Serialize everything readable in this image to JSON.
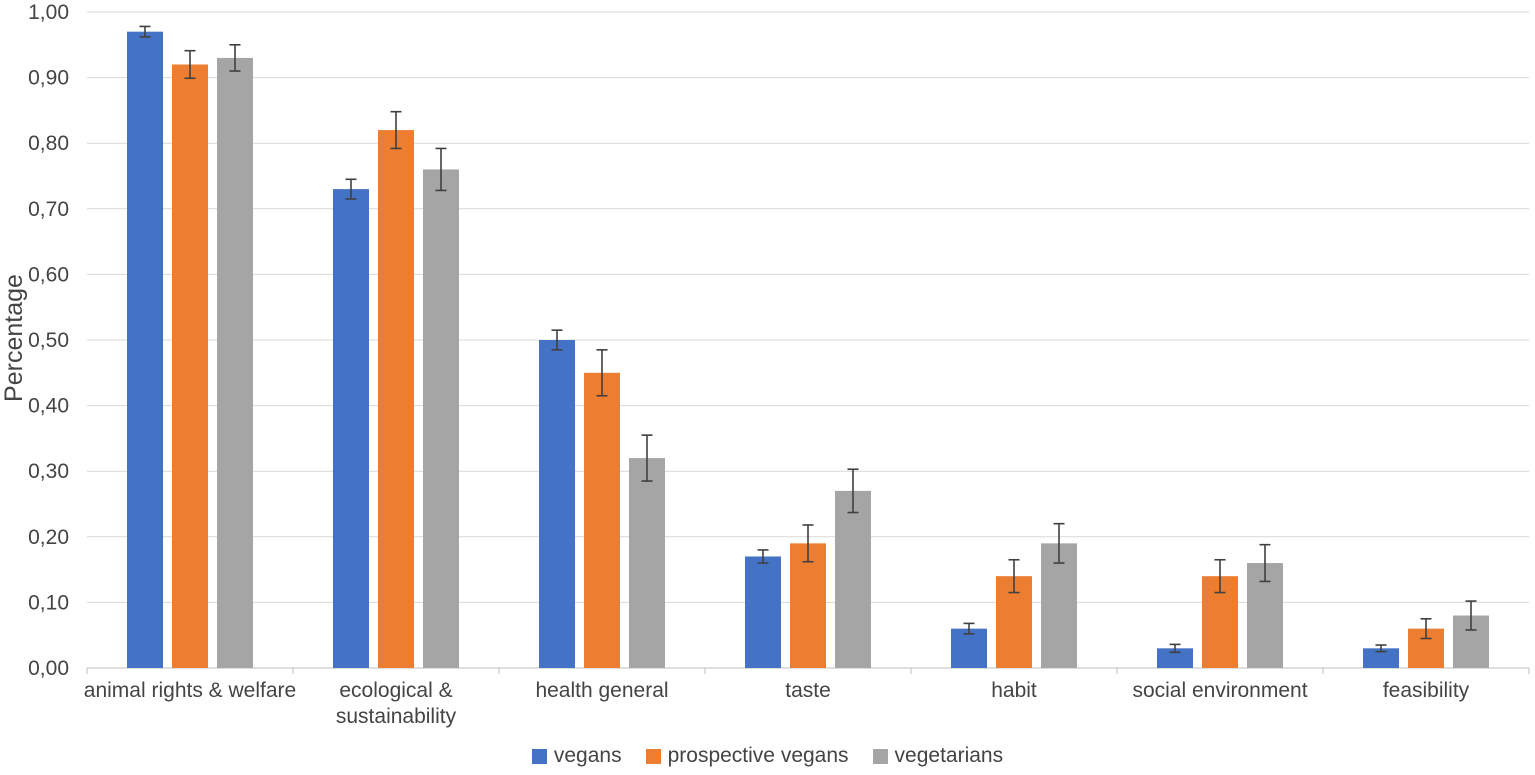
{
  "chart_data": {
    "type": "bar",
    "title": "",
    "ylabel": "Percentage",
    "xlabel": "",
    "ylim": [
      0,
      1.0
    ],
    "ytick_step": 0.1,
    "ytick_labels": [
      "0,00",
      "0,10",
      "0,20",
      "0,30",
      "0,40",
      "0,50",
      "0,60",
      "0,70",
      "0,80",
      "0,90",
      "1,00"
    ],
    "decimal_separator": ",",
    "grid": true,
    "error_bars": true,
    "legend_position": "bottom",
    "categories": [
      "animal rights & welfare",
      "ecological & sustainability",
      "health general",
      "taste",
      "habit",
      "social environment",
      "feasibility"
    ],
    "category_lines": [
      [
        "animal rights & welfare"
      ],
      [
        "ecological &",
        "sustainability"
      ],
      [
        "health general"
      ],
      [
        "taste"
      ],
      [
        "habit"
      ],
      [
        "social environment"
      ],
      [
        "feasibility"
      ]
    ],
    "series": [
      {
        "name": "vegans",
        "color": "#4472C4",
        "values": [
          0.97,
          0.73,
          0.5,
          0.17,
          0.06,
          0.03,
          0.03
        ],
        "errors": [
          0.008,
          0.015,
          0.015,
          0.01,
          0.008,
          0.006,
          0.005
        ]
      },
      {
        "name": "prospective vegans",
        "color": "#ED7D31",
        "values": [
          0.92,
          0.82,
          0.45,
          0.19,
          0.14,
          0.14,
          0.06
        ],
        "errors": [
          0.021,
          0.028,
          0.035,
          0.028,
          0.025,
          0.025,
          0.015
        ]
      },
      {
        "name": "vegetarians",
        "color": "#A5A5A5",
        "values": [
          0.93,
          0.76,
          0.32,
          0.27,
          0.19,
          0.16,
          0.08
        ],
        "errors": [
          0.02,
          0.032,
          0.035,
          0.033,
          0.03,
          0.028,
          0.022
        ]
      }
    ]
  },
  "style": {
    "background": "#FFFFFF",
    "gridline_color": "#D9D9D9",
    "axis_line_color": "#BFBFBF",
    "error_bar_color": "#404040",
    "text_color": "#444444"
  }
}
